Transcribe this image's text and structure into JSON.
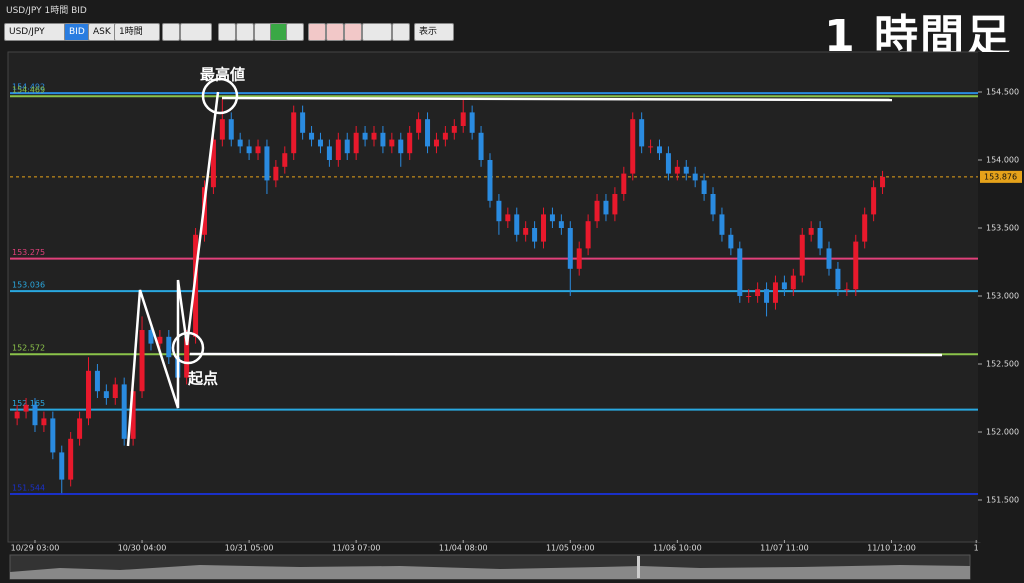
{
  "ui": {
    "window_title": "USD/JPY 1時間 BID",
    "symbol": "USD/JPY",
    "bid": "BID",
    "ask": "ASK",
    "interval": "1時間",
    "view": "表示",
    "headline": "1 時間足"
  },
  "chart_data": {
    "type": "candlestick",
    "up_color": "#e8192c",
    "down_color": "#2a8be0",
    "ylim": [
      151.206,
      154.772
    ],
    "yticks": [
      {
        "value": 151.5,
        "label": "151.500"
      },
      {
        "value": 152,
        "label": "152.000"
      },
      {
        "value": 152.5,
        "label": "152.500"
      },
      {
        "value": 153,
        "label": "153.000"
      },
      {
        "value": 153.5,
        "label": "153.500"
      },
      {
        "value": 154,
        "label": "154.000"
      },
      {
        "value": 154.5,
        "label": "154.500"
      }
    ],
    "xlim": [
      -0.8,
      107.7
    ],
    "xticks": [
      {
        "value": 2,
        "label": "10/29 03:00"
      },
      {
        "value": 14,
        "label": "10/30 04:00"
      },
      {
        "value": 26,
        "label": "10/31 05:00"
      },
      {
        "value": 38,
        "label": "11/03 07:00"
      },
      {
        "value": 50,
        "label": "11/04 08:00"
      },
      {
        "value": 62,
        "label": "11/05 09:00"
      },
      {
        "value": 74,
        "label": "11/06 10:00"
      },
      {
        "value": 86,
        "label": "11/07 11:00"
      },
      {
        "value": 98,
        "label": "11/10 12:00"
      },
      {
        "value": 107.5,
        "label": "1"
      }
    ],
    "hlines": [
      {
        "value": 154.492,
        "color": "#2a8be0"
      },
      {
        "value": 154.469,
        "color": "#8bc34a"
      },
      {
        "value": 153.275,
        "color": "#e0407a"
      },
      {
        "value": 153.036,
        "color": "#29a8e0"
      },
      {
        "value": 152.572,
        "color": "#8bc34a"
      },
      {
        "value": 152.165,
        "color": "#29a8e0"
      },
      {
        "value": 151.544,
        "color": "#1a30c8"
      }
    ],
    "last_price": 153.876,
    "last_color": "#e6a21a",
    "annotations": [
      "最高値",
      "起点"
    ],
    "candles": [
      [
        152.1,
        152.2,
        152.05,
        152.15
      ],
      [
        152.15,
        152.25,
        152.1,
        152.2
      ],
      [
        152.2,
        152.25,
        152.0,
        152.05
      ],
      [
        152.05,
        152.15,
        152.0,
        152.1
      ],
      [
        152.1,
        152.15,
        151.8,
        151.85
      ],
      [
        151.85,
        151.9,
        151.55,
        151.65
      ],
      [
        151.65,
        152.0,
        151.6,
        151.95
      ],
      [
        151.95,
        152.15,
        151.9,
        152.1
      ],
      [
        152.1,
        152.55,
        152.05,
        152.45
      ],
      [
        152.45,
        152.5,
        152.25,
        152.3
      ],
      [
        152.3,
        152.35,
        152.2,
        152.25
      ],
      [
        152.25,
        152.4,
        152.2,
        152.35
      ],
      [
        152.35,
        152.4,
        151.9,
        151.95
      ],
      [
        151.95,
        152.35,
        151.9,
        152.3
      ],
      [
        152.3,
        152.85,
        152.25,
        152.75
      ],
      [
        152.75,
        152.8,
        152.6,
        152.65
      ],
      [
        152.65,
        152.75,
        152.6,
        152.7
      ],
      [
        152.7,
        152.75,
        152.5,
        152.55
      ],
      [
        152.55,
        152.6,
        152.35,
        152.4
      ],
      [
        152.4,
        152.75,
        152.35,
        152.7
      ],
      [
        152.7,
        153.5,
        152.65,
        153.45
      ],
      [
        153.45,
        153.85,
        153.4,
        153.8
      ],
      [
        153.8,
        154.2,
        153.75,
        154.15
      ],
      [
        154.15,
        154.45,
        154.1,
        154.3
      ],
      [
        154.3,
        154.35,
        154.1,
        154.15
      ],
      [
        154.15,
        154.2,
        154.05,
        154.1
      ],
      [
        154.1,
        154.15,
        154.0,
        154.05
      ],
      [
        154.05,
        154.15,
        154.0,
        154.1
      ],
      [
        154.1,
        154.15,
        153.75,
        153.85
      ],
      [
        153.85,
        154.0,
        153.8,
        153.95
      ],
      [
        153.95,
        154.1,
        153.9,
        154.05
      ],
      [
        154.05,
        154.4,
        154.0,
        154.35
      ],
      [
        154.35,
        154.4,
        154.15,
        154.2
      ],
      [
        154.2,
        154.25,
        154.1,
        154.15
      ],
      [
        154.15,
        154.2,
        154.05,
        154.1
      ],
      [
        154.1,
        154.15,
        153.95,
        154.0
      ],
      [
        154.0,
        154.2,
        153.95,
        154.15
      ],
      [
        154.15,
        154.2,
        154.0,
        154.05
      ],
      [
        154.05,
        154.25,
        154.0,
        154.2
      ],
      [
        154.2,
        154.25,
        154.1,
        154.15
      ],
      [
        154.15,
        154.25,
        154.1,
        154.2
      ],
      [
        154.2,
        154.25,
        154.05,
        154.1
      ],
      [
        154.1,
        154.2,
        154.05,
        154.15
      ],
      [
        154.15,
        154.2,
        153.95,
        154.05
      ],
      [
        154.05,
        154.25,
        154.0,
        154.2
      ],
      [
        154.2,
        154.35,
        154.15,
        154.3
      ],
      [
        154.3,
        154.35,
        154.05,
        154.1
      ],
      [
        154.1,
        154.2,
        154.05,
        154.15
      ],
      [
        154.15,
        154.25,
        154.1,
        154.2
      ],
      [
        154.2,
        154.3,
        154.15,
        154.25
      ],
      [
        154.25,
        154.45,
        154.2,
        154.35
      ],
      [
        154.35,
        154.4,
        154.15,
        154.2
      ],
      [
        154.2,
        154.25,
        153.95,
        154.0
      ],
      [
        154.0,
        154.05,
        153.65,
        153.7
      ],
      [
        153.7,
        153.75,
        153.45,
        153.55
      ],
      [
        153.55,
        153.65,
        153.5,
        153.6
      ],
      [
        153.6,
        153.65,
        153.4,
        153.45
      ],
      [
        153.45,
        153.55,
        153.4,
        153.5
      ],
      [
        153.5,
        153.55,
        153.35,
        153.4
      ],
      [
        153.4,
        153.65,
        153.35,
        153.6
      ],
      [
        153.6,
        153.65,
        153.5,
        153.55
      ],
      [
        153.55,
        153.6,
        153.45,
        153.5
      ],
      [
        153.5,
        153.55,
        153.0,
        153.2
      ],
      [
        153.2,
        153.4,
        153.15,
        153.35
      ],
      [
        153.35,
        153.6,
        153.3,
        153.55
      ],
      [
        153.55,
        153.75,
        153.5,
        153.7
      ],
      [
        153.7,
        153.75,
        153.55,
        153.6
      ],
      [
        153.6,
        153.8,
        153.55,
        153.75
      ],
      [
        153.75,
        153.95,
        153.7,
        153.9
      ],
      [
        153.9,
        154.35,
        153.85,
        154.3
      ],
      [
        154.3,
        154.35,
        154.05,
        154.1
      ],
      [
        154.1,
        154.15,
        154.05,
        154.1
      ],
      [
        154.1,
        154.15,
        154.0,
        154.05
      ],
      [
        154.05,
        154.1,
        153.85,
        153.9
      ],
      [
        153.9,
        154.0,
        153.85,
        153.95
      ],
      [
        153.95,
        154.0,
        153.85,
        153.9
      ],
      [
        153.9,
        153.95,
        153.8,
        153.85
      ],
      [
        153.85,
        153.9,
        153.7,
        153.75
      ],
      [
        153.75,
        153.8,
        153.55,
        153.6
      ],
      [
        153.6,
        153.65,
        153.4,
        153.45
      ],
      [
        153.45,
        153.5,
        153.3,
        153.35
      ],
      [
        153.35,
        153.4,
        152.95,
        153.0
      ],
      [
        153.0,
        153.05,
        152.95,
        153.0
      ],
      [
        153.0,
        153.1,
        152.95,
        153.05
      ],
      [
        153.05,
        153.1,
        152.85,
        152.95
      ],
      [
        152.95,
        153.15,
        152.9,
        153.1
      ],
      [
        153.1,
        153.15,
        153.0,
        153.05
      ],
      [
        153.05,
        153.2,
        153.0,
        153.15
      ],
      [
        153.15,
        153.5,
        153.1,
        153.45
      ],
      [
        153.45,
        153.55,
        153.4,
        153.5
      ],
      [
        153.5,
        153.55,
        153.3,
        153.35
      ],
      [
        153.35,
        153.4,
        153.15,
        153.2
      ],
      [
        153.2,
        153.25,
        153.0,
        153.05
      ],
      [
        153.05,
        153.1,
        153.0,
        153.05
      ],
      [
        153.05,
        153.45,
        153.0,
        153.4
      ],
      [
        153.4,
        153.65,
        153.35,
        153.6
      ],
      [
        153.6,
        153.85,
        153.55,
        153.8
      ],
      [
        153.8,
        153.92,
        153.75,
        153.876
      ]
    ]
  }
}
